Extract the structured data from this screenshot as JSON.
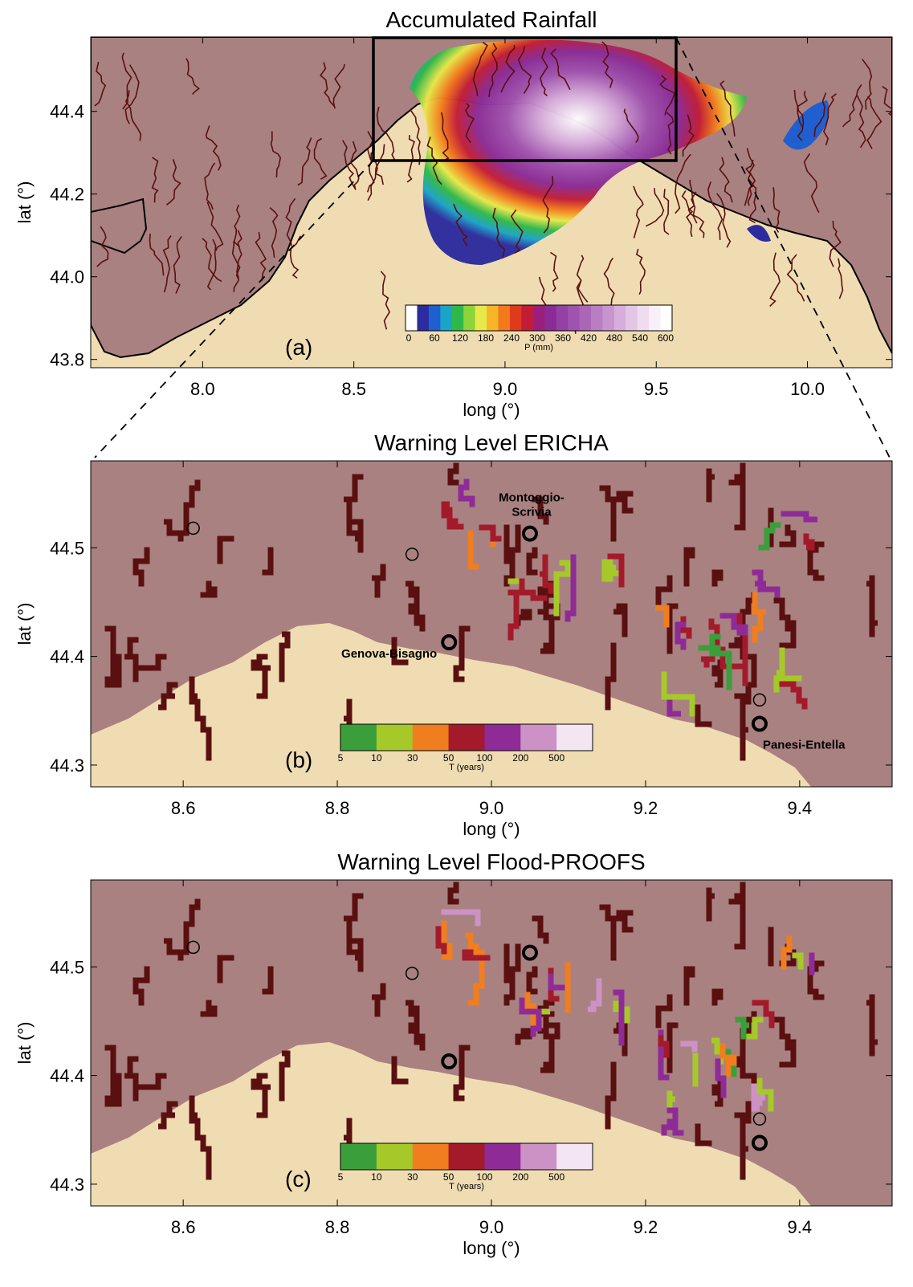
{
  "panels": [
    {
      "id": "a",
      "title": "Accumulated Rainfall",
      "panel_label": "(a)",
      "xlabel": "long (°)",
      "ylabel": "lat (°)",
      "x_range": [
        7.63,
        10.28
      ],
      "y_range": [
        43.78,
        44.58
      ],
      "x_ticks": [
        "8.0",
        "8.5",
        "9.0",
        "9.5",
        "10.0"
      ],
      "x_tick_values": [
        8.0,
        8.5,
        9.0,
        9.5,
        10.0
      ],
      "y_ticks": [
        "44.4",
        "44.2",
        "44.0",
        "43.8"
      ],
      "y_tick_values": [
        44.4,
        44.2,
        44.0,
        43.8
      ],
      "zoom_box": {
        "lon": [
          8.48,
          9.52
        ],
        "lat": [
          44.28,
          44.58
        ]
      },
      "colorbar": {
        "ticks": [
          "0",
          "60",
          "120",
          "180",
          "240",
          "300",
          "360",
          "420",
          "480",
          "540",
          "600"
        ],
        "label": "P (mm)",
        "colors": [
          "#ffffff",
          "#2c2c9e",
          "#1f5fd0",
          "#1aa4c8",
          "#2fb84a",
          "#8cd43a",
          "#e8e84a",
          "#f7b52a",
          "#f27a1c",
          "#e03a1c",
          "#c21d36",
          "#9a1f7d",
          "#8a2b96",
          "#9440a4",
          "#9f52ae",
          "#ab66b8",
          "#b97dc3",
          "#c894cf",
          "#d6addb",
          "#e3c6e6",
          "#efdcf0",
          "#f8f0f8",
          "#ffffff"
        ]
      }
    },
    {
      "id": "b",
      "title": "Warning Level ERICHA",
      "panel_label": "(b)",
      "xlabel": "long (°)",
      "ylabel": "lat (°)",
      "x_range": [
        8.48,
        9.52
      ],
      "y_range": [
        44.28,
        44.58
      ],
      "x_ticks": [
        "8.6",
        "8.8",
        "9.0",
        "9.2",
        "9.4"
      ],
      "x_tick_values": [
        8.6,
        8.8,
        9.0,
        9.2,
        9.4
      ],
      "y_ticks": [
        "44.5",
        "44.4",
        "44.3"
      ],
      "y_tick_values": [
        44.5,
        44.4,
        44.3
      ],
      "stations": [
        {
          "name": "Montoggio-Scrivia",
          "lon": 9.05,
          "lat": 44.513,
          "bold": true,
          "label": "Montoggio-\nScrivia"
        },
        {
          "name": "Genova-Bisagno",
          "lon": 8.945,
          "lat": 44.413,
          "bold": true,
          "label": "Genova-Bisagno"
        },
        {
          "name": "Panesi-Entella",
          "lon": 9.348,
          "lat": 44.338,
          "bold": true,
          "label": "Panesi-Entella"
        },
        {
          "name": "",
          "lon": 8.613,
          "lat": 44.518,
          "bold": false,
          "label": ""
        },
        {
          "name": "",
          "lon": 8.897,
          "lat": 44.494,
          "bold": false,
          "label": ""
        },
        {
          "name": "",
          "lon": 9.348,
          "lat": 44.36,
          "bold": false,
          "label": ""
        }
      ],
      "colorbar": {
        "ticks": [
          "5",
          "10",
          "30",
          "50",
          "100",
          "200",
          "500"
        ],
        "label": "T (years)",
        "colors": [
          "#3a9e3a",
          "#a6c92a",
          "#f07d1e",
          "#a31a2a",
          "#8f2b96",
          "#cc92c6",
          "#f3e6f2"
        ]
      }
    },
    {
      "id": "c",
      "title": "Warning Level Flood-PROOFS",
      "panel_label": "(c)",
      "xlabel": "long (°)",
      "ylabel": "lat (°)",
      "x_range": [
        8.48,
        9.52
      ],
      "y_range": [
        44.28,
        44.58
      ],
      "x_ticks": [
        "8.6",
        "8.8",
        "9.0",
        "9.2",
        "9.4"
      ],
      "x_tick_values": [
        8.6,
        8.8,
        9.0,
        9.2,
        9.4
      ],
      "y_ticks": [
        "44.5",
        "44.4",
        "44.3"
      ],
      "y_tick_values": [
        44.5,
        44.4,
        44.3
      ],
      "stations": [
        {
          "name": "",
          "lon": 9.05,
          "lat": 44.513,
          "bold": true,
          "label": ""
        },
        {
          "name": "",
          "lon": 8.945,
          "lat": 44.413,
          "bold": true,
          "label": ""
        },
        {
          "name": "",
          "lon": 9.348,
          "lat": 44.338,
          "bold": true,
          "label": ""
        },
        {
          "name": "",
          "lon": 8.613,
          "lat": 44.518,
          "bold": false,
          "label": ""
        },
        {
          "name": "",
          "lon": 8.897,
          "lat": 44.494,
          "bold": false,
          "label": ""
        },
        {
          "name": "",
          "lon": 9.348,
          "lat": 44.36,
          "bold": false,
          "label": ""
        }
      ],
      "colorbar": {
        "ticks": [
          "5",
          "10",
          "30",
          "50",
          "100",
          "200",
          "500"
        ],
        "label": "T (years)",
        "colors": [
          "#3a9e3a",
          "#a6c92a",
          "#f07d1e",
          "#a31a2a",
          "#8f2b96",
          "#cc92c6",
          "#f3e6f2"
        ]
      }
    }
  ],
  "colors": {
    "land": "#a98181",
    "sea": "#f0dcb2",
    "river": "#5a1010",
    "coast": "#000000"
  }
}
